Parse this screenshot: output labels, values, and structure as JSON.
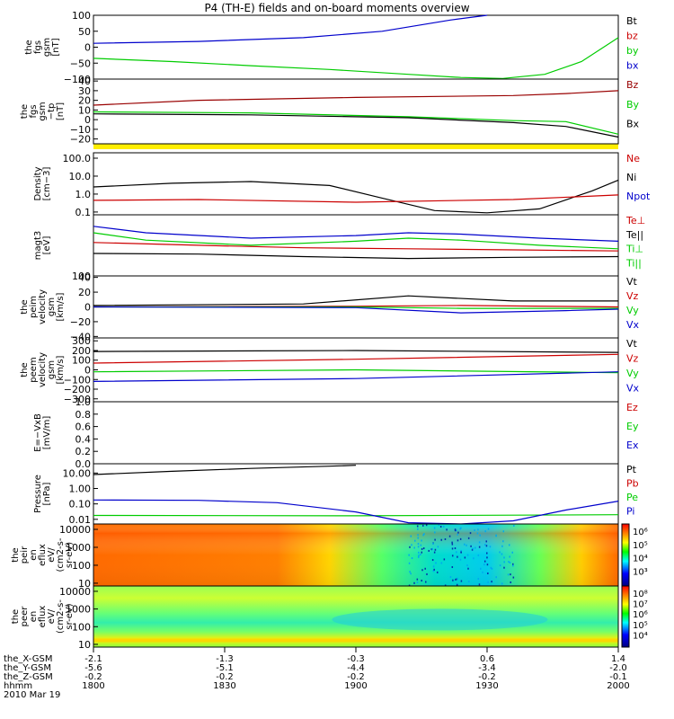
{
  "chart_data": {
    "title": "P4 (TH-E) fields and on-board moments overview",
    "time_axis": {
      "hhmm": [
        "1800",
        "1830",
        "1900",
        "1930",
        "2000"
      ],
      "date": "2010 Mar 19",
      "rows": [
        {
          "label": "the_X-GSM",
          "values": [
            "-2.1",
            "-1.3",
            "-0.3",
            "0.6",
            "1.4"
          ]
        },
        {
          "label": "the_Y-GSM",
          "values": [
            "-5.6",
            "-5.1",
            "-4.4",
            "-3.4",
            "-2.0"
          ]
        },
        {
          "label": "the_Z-GSM",
          "values": [
            "-0.2",
            "-0.2",
            "-0.2",
            "-0.2",
            "-0.1"
          ]
        },
        {
          "label": "hhmm",
          "values": []
        }
      ]
    },
    "panels": [
      {
        "type": "line",
        "ylabel": [
          "the",
          "fgs",
          "gsm",
          "[nT]"
        ],
        "ylim": [
          -100,
          100
        ],
        "ticks": [
          "100",
          "50",
          "0",
          "−50",
          "−100"
        ],
        "tick_values": [
          100,
          50,
          0,
          -50,
          -100
        ],
        "legend": [
          {
            "name": "Bt",
            "color": "#000000"
          },
          {
            "name": "bz",
            "color": "#cc0000"
          },
          {
            "name": "by",
            "color": "#00cc00"
          },
          {
            "name": "bx",
            "color": "#0000cc"
          }
        ],
        "series": [
          {
            "name": "bx",
            "color": "#0000cc",
            "x": [
              0,
              0.2,
              0.4,
              0.55,
              0.68,
              0.75
            ],
            "y": [
              12,
              18,
              30,
              50,
              85,
              105
            ]
          },
          {
            "name": "by",
            "color": "#00cc00",
            "x": [
              0,
              0.15,
              0.3,
              0.45,
              0.6,
              0.7,
              0.78,
              0.86,
              0.93,
              1.0
            ],
            "y": [
              -35,
              -45,
              -58,
              -70,
              -85,
              -95,
              -98,
              -85,
              -45,
              30
            ]
          }
        ]
      },
      {
        "type": "line",
        "ylabel": [
          "the",
          "fgs",
          "gsm",
          "−tp",
          "[nT]"
        ],
        "ylim": [
          -25,
          42
        ],
        "ticks": [
          "40",
          "30",
          "20",
          "10",
          "0",
          "−10",
          "−20"
        ],
        "tick_values": [
          40,
          30,
          20,
          10,
          0,
          -10,
          -20
        ],
        "legend": [
          {
            "name": "Bz",
            "color": "#990000"
          },
          {
            "name": "By",
            "color": "#00cc00"
          },
          {
            "name": "Bx",
            "color": "#000000"
          }
        ],
        "series": [
          {
            "name": "Bz",
            "color": "#990000",
            "x": [
              0,
              0.2,
              0.5,
              0.8,
              0.9,
              1.0
            ],
            "y": [
              15,
              20,
              23,
              25,
              27,
              30
            ]
          },
          {
            "name": "By",
            "color": "#00cc00",
            "x": [
              0,
              0.3,
              0.6,
              0.8,
              0.9,
              1.0
            ],
            "y": [
              8,
              7,
              3,
              -1,
              -2,
              -15
            ]
          },
          {
            "name": "Bx",
            "color": "#000000",
            "x": [
              0,
              0.3,
              0.6,
              0.8,
              0.9,
              1.0
            ],
            "y": [
              6,
              5,
              2,
              -3,
              -7,
              -18
            ]
          }
        ]
      },
      {
        "type": "line",
        "ylabel": [
          "Density",
          "[cm−3]"
        ],
        "ylim": [
          0.07,
          200
        ],
        "log": true,
        "ticks": [
          "100.0",
          "10.0",
          "1.0",
          "0.1"
        ],
        "tick_values": [
          100,
          10,
          1,
          0.1
        ],
        "legend": [
          {
            "name": "Ne",
            "color": "#cc0000"
          },
          {
            "name": "Ni",
            "color": "#000000"
          },
          {
            "name": "Npot",
            "color": "#0000cc"
          }
        ],
        "series": [
          {
            "name": "Ni",
            "color": "#000000",
            "x": [
              0,
              0.15,
              0.3,
              0.45,
              0.55,
              0.65,
              0.75,
              0.85,
              0.95,
              1.0
            ],
            "y": [
              2.5,
              4,
              5,
              3,
              0.6,
              0.12,
              0.09,
              0.15,
              1.5,
              6
            ]
          },
          {
            "name": "Ne",
            "color": "#cc0000",
            "x": [
              0,
              0.2,
              0.5,
              0.8,
              1.0
            ],
            "y": [
              0.45,
              0.5,
              0.35,
              0.5,
              0.9
            ]
          }
        ]
      },
      {
        "type": "line",
        "ylabel": [
          "magt3",
          "[eV]"
        ],
        "ylim": [
          100,
          8000
        ],
        "log": true,
        "ticks": [
          "100"
        ],
        "tick_values": [
          100
        ],
        "legend": [
          {
            "name": "Te⊥",
            "color": "#cc0000"
          },
          {
            "name": "Te||",
            "color": "#000000"
          },
          {
            "name": "Ti⊥",
            "color": "#00cc00"
          },
          {
            "name": "Ti||",
            "color": "#00cc00"
          }
        ],
        "series": [
          {
            "name": "Ti⊥",
            "color": "#0000cc",
            "x": [
              0,
              0.1,
              0.3,
              0.5,
              0.6,
              0.7,
              0.85,
              1.0
            ],
            "y": [
              3500,
              2200,
              1500,
              1800,
              2200,
              2000,
              1500,
              1200
            ]
          },
          {
            "name": "Ti||",
            "color": "#00cc00",
            "x": [
              0,
              0.1,
              0.3,
              0.5,
              0.6,
              0.7,
              0.85,
              1.0
            ],
            "y": [
              2200,
              1300,
              900,
              1200,
              1500,
              1300,
              900,
              700
            ]
          },
          {
            "name": "Te⊥",
            "color": "#cc0000",
            "x": [
              0,
              0.2,
              0.4,
              0.6,
              0.8,
              1.0
            ],
            "y": [
              1100,
              900,
              750,
              700,
              650,
              600
            ]
          },
          {
            "name": "Te||",
            "color": "#000000",
            "x": [
              0,
              0.2,
              0.4,
              0.6,
              0.8,
              1.0
            ],
            "y": [
              500,
              480,
              400,
              350,
              380,
              400
            ]
          }
        ]
      },
      {
        "type": "line",
        "ylabel": [
          "the",
          "peim",
          "velocity",
          "gsm",
          "[km/s]"
        ],
        "ylim": [
          -42,
          42
        ],
        "ticks": [
          "40",
          "20",
          "0",
          "−20",
          "−40"
        ],
        "tick_values": [
          40,
          20,
          0,
          -20,
          -40
        ],
        "legend": [
          {
            "name": "Vt",
            "color": "#000000"
          },
          {
            "name": "Vz",
            "color": "#cc0000"
          },
          {
            "name": "Vy",
            "color": "#00cc00"
          },
          {
            "name": "Vx",
            "color": "#0000cc"
          }
        ],
        "series": [
          {
            "name": "Vt",
            "color": "#000000",
            "x": [
              0,
              0.4,
              0.6,
              0.8,
              1.0
            ],
            "y": [
              2,
              4,
              15,
              8,
              8
            ]
          },
          {
            "name": "Vz",
            "color": "#cc0000",
            "x": [
              0,
              0.5,
              0.7,
              1.0
            ],
            "y": [
              0,
              1,
              2,
              0
            ]
          },
          {
            "name": "Vy",
            "color": "#00cc00",
            "x": [
              0,
              0.5,
              0.7,
              1.0
            ],
            "y": [
              0,
              0,
              -2,
              -2
            ]
          },
          {
            "name": "Vx",
            "color": "#0000cc",
            "x": [
              0,
              0.5,
              0.7,
              0.9,
              1.0
            ],
            "y": [
              0,
              -1,
              -8,
              -5,
              -3
            ]
          }
        ]
      },
      {
        "type": "line",
        "ylabel": [
          "the",
          "peem",
          "velocity",
          "gsm",
          "[km/s]"
        ],
        "ylim": [
          -330,
          330
        ],
        "ticks": [
          "300",
          "200",
          "100",
          "0",
          "−100",
          "−200",
          "−300"
        ],
        "tick_values": [
          300,
          200,
          100,
          0,
          -100,
          -200,
          -300
        ],
        "legend": [
          {
            "name": "Vt",
            "color": "#000000"
          },
          {
            "name": "Vz",
            "color": "#cc0000"
          },
          {
            "name": "Vy",
            "color": "#00cc00"
          },
          {
            "name": "Vx",
            "color": "#0000cc"
          }
        ],
        "series": [
          {
            "name": "Vt",
            "color": "#000000",
            "x": [
              0,
              0.5,
              1.0
            ],
            "y": [
              190,
              200,
              180
            ]
          },
          {
            "name": "Vz",
            "color": "#cc0000",
            "x": [
              0,
              0.5,
              1.0
            ],
            "y": [
              70,
              110,
              160
            ]
          },
          {
            "name": "Vy",
            "color": "#00cc00",
            "x": [
              0,
              0.5,
              1.0
            ],
            "y": [
              -20,
              0,
              -30
            ]
          },
          {
            "name": "Vx",
            "color": "#0000cc",
            "x": [
              0,
              0.5,
              1.0
            ],
            "y": [
              -120,
              -90,
              -20
            ]
          }
        ]
      },
      {
        "type": "line",
        "ylabel": [
          "E=−VxB",
          "[mV/m]"
        ],
        "ylim": [
          0,
          1
        ],
        "ticks": [
          "1.0",
          "0.8",
          "0.6",
          "0.4",
          "0.2",
          "0.0"
        ],
        "tick_values": [
          1.0,
          0.8,
          0.6,
          0.4,
          0.2,
          0.0
        ],
        "legend": [
          {
            "name": "Ez",
            "color": "#cc0000"
          },
          {
            "name": "Ey",
            "color": "#00cc00"
          },
          {
            "name": "Ex",
            "color": "#0000cc"
          }
        ],
        "series": []
      },
      {
        "type": "line",
        "ylabel": [
          "Pressure",
          "[nPa]"
        ],
        "ylim": [
          0.005,
          40
        ],
        "log": true,
        "ticks": [
          "10.00",
          "1.00",
          "0.10",
          "0.01"
        ],
        "tick_values": [
          10,
          1,
          0.1,
          0.01
        ],
        "legend": [
          {
            "name": "Pt",
            "color": "#000000"
          },
          {
            "name": "Pb",
            "color": "#cc0000"
          },
          {
            "name": "Pe",
            "color": "#00cc00"
          },
          {
            "name": "Pi",
            "color": "#0000cc"
          }
        ],
        "series": [
          {
            "name": "Pt",
            "color": "#000000",
            "x": [
              0,
              0.15,
              0.3,
              0.45,
              0.5
            ],
            "y": [
              8,
              13,
              20,
              28,
              32
            ]
          },
          {
            "name": "Pe",
            "color": "#00cc00",
            "x": [
              0,
              0.5,
              1.0
            ],
            "y": [
              0.018,
              0.017,
              0.02
            ]
          },
          {
            "name": "Pi",
            "color": "#0000cc",
            "x": [
              0,
              0.2,
              0.35,
              0.5,
              0.6,
              0.7,
              0.8,
              0.9,
              1.0
            ],
            "y": [
              0.18,
              0.17,
              0.12,
              0.03,
              0.006,
              0.004,
              0.008,
              0.04,
              0.15
            ]
          }
        ]
      },
      {
        "type": "heatmap",
        "ylabel": [
          "the",
          "peir",
          "en",
          "eflux",
          "eV/",
          "(cm2-s-",
          "sr-eV)"
        ],
        "ylim": [
          7,
          20000
        ],
        "log": true,
        "ticks": [
          "10000",
          "1000",
          "100",
          "10"
        ],
        "tick_values": [
          10000,
          1000,
          100,
          10
        ],
        "colorbar": {
          "labels": [
            "10⁶",
            "10⁵",
            "10⁴",
            "10³"
          ],
          "levels": [
            6,
            5,
            4,
            3
          ]
        }
      },
      {
        "type": "heatmap",
        "ylabel": [
          "the",
          "peer",
          "en",
          "eflux",
          "eV/",
          "(cm2-s-",
          "sr-eV)"
        ],
        "ylim": [
          7,
          20000
        ],
        "log": true,
        "ticks": [
          "10000",
          "1000",
          "100",
          "10"
        ],
        "tick_values": [
          10000,
          1000,
          100,
          10
        ],
        "colorbar": {
          "labels": [
            "10⁸",
            "10⁷",
            "10⁶",
            "10⁵",
            "10⁴"
          ],
          "levels": [
            8,
            7,
            6,
            5,
            4
          ]
        }
      }
    ]
  }
}
